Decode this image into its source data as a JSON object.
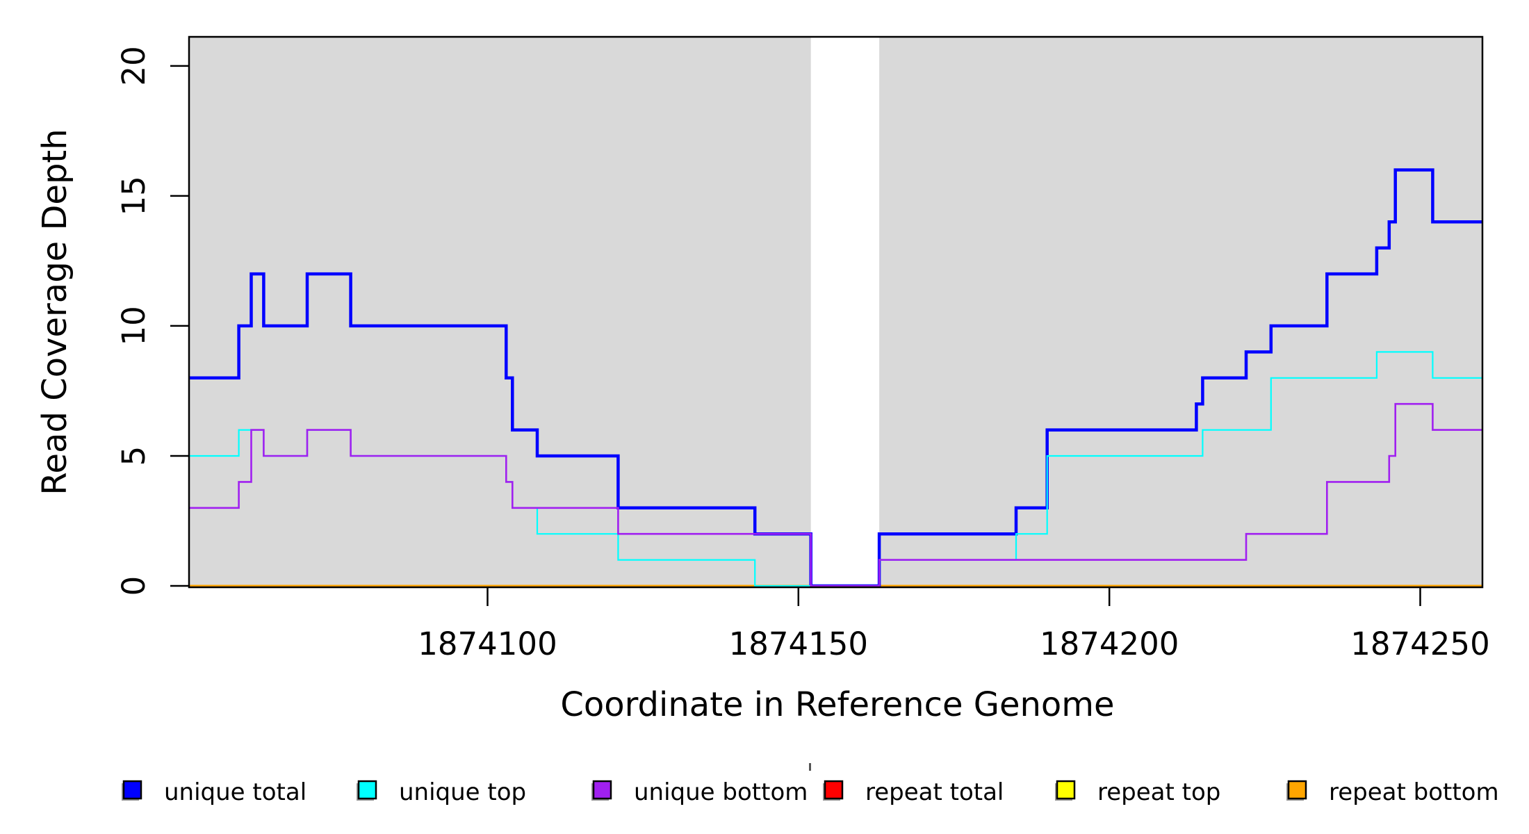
{
  "figure": {
    "background": "#FFFFFF",
    "plot_background": "#D9D9D9"
  },
  "chart_data": {
    "type": "line",
    "subtype": "step-coverage",
    "title": "",
    "xlabel": "Coordinate in Reference Genome",
    "ylabel": "Read Coverage Depth",
    "xlim": [
      1874052,
      1874260
    ],
    "ylim": [
      0,
      21.12
    ],
    "x_ticks": [
      1874100,
      1874150,
      1874200,
      1874250
    ],
    "y_ticks": [
      0,
      5,
      10,
      15,
      20
    ],
    "grid": false,
    "legend_position": "bottom",
    "plot_bands_color": "#D9D9D9",
    "coverage_gap": [
      1874152,
      1874163
    ],
    "draw_order": [
      "repeat total",
      "repeat top",
      "repeat bottom",
      "unique total",
      "unique top",
      "unique bottom"
    ],
    "series": [
      {
        "name": "unique total",
        "color": "#0000FF",
        "line_width": 4.5,
        "steps": [
          [
            1874052,
            8
          ],
          [
            1874060,
            10
          ],
          [
            1874062,
            12
          ],
          [
            1874064,
            10
          ],
          [
            1874071,
            12
          ],
          [
            1874078,
            10
          ],
          [
            1874103,
            8
          ],
          [
            1874104,
            6
          ],
          [
            1874108,
            5
          ],
          [
            1874121,
            3
          ],
          [
            1874143,
            2
          ],
          [
            1874152,
            0
          ],
          [
            1874163,
            2
          ],
          [
            1874185,
            3
          ],
          [
            1874190,
            6
          ],
          [
            1874214,
            7
          ],
          [
            1874215,
            8
          ],
          [
            1874222,
            9
          ],
          [
            1874226,
            10
          ],
          [
            1874235,
            12
          ],
          [
            1874243,
            13
          ],
          [
            1874245,
            14
          ],
          [
            1874246,
            16
          ],
          [
            1874252,
            14
          ]
        ]
      },
      {
        "name": "unique top",
        "color": "#00FFFF",
        "line_width": 2.2,
        "steps": [
          [
            1874052,
            5
          ],
          [
            1874060,
            6
          ],
          [
            1874064,
            5
          ],
          [
            1874071,
            6
          ],
          [
            1874078,
            5
          ],
          [
            1874103,
            4
          ],
          [
            1874104,
            3
          ],
          [
            1874108,
            2
          ],
          [
            1874121,
            1
          ],
          [
            1874143,
            0
          ],
          [
            1874163,
            1
          ],
          [
            1874185,
            2
          ],
          [
            1874190,
            5
          ],
          [
            1874215,
            6
          ],
          [
            1874226,
            8
          ],
          [
            1874243,
            9
          ],
          [
            1874252,
            8
          ]
        ]
      },
      {
        "name": "unique bottom",
        "color": "#A020F0",
        "line_width": 2.6,
        "steps": [
          [
            1874052,
            3
          ],
          [
            1874060,
            4
          ],
          [
            1874062,
            6
          ],
          [
            1874064,
            5
          ],
          [
            1874071,
            6
          ],
          [
            1874078,
            5
          ],
          [
            1874103,
            4
          ],
          [
            1874104,
            3
          ],
          [
            1874121,
            2
          ],
          [
            1874152,
            0
          ],
          [
            1874163,
            1
          ],
          [
            1874222,
            2
          ],
          [
            1874235,
            4
          ],
          [
            1874245,
            5
          ],
          [
            1874246,
            7
          ],
          [
            1874252,
            6
          ]
        ]
      },
      {
        "name": "repeat total",
        "color": "#FF0000",
        "line_width": 2.2,
        "steps": [
          [
            1874052,
            0
          ]
        ]
      },
      {
        "name": "repeat top",
        "color": "#FFFF00",
        "line_width": 2.2,
        "steps": [
          [
            1874052,
            0
          ]
        ]
      },
      {
        "name": "repeat bottom",
        "color": "#FFA500",
        "line_width": 3,
        "steps": [
          [
            1874052,
            0
          ]
        ]
      }
    ]
  },
  "legend": {
    "items": [
      {
        "label": "unique total",
        "color": "#0000FF"
      },
      {
        "label": "unique top",
        "color": "#00FFFF"
      },
      {
        "label": "unique bottom",
        "color": "#A020F0"
      },
      {
        "label": "repeat total",
        "color": "#FF0000"
      },
      {
        "label": "repeat top",
        "color": "#FFFF00"
      },
      {
        "label": "repeat bottom",
        "color": "#FFA500"
      }
    ]
  }
}
